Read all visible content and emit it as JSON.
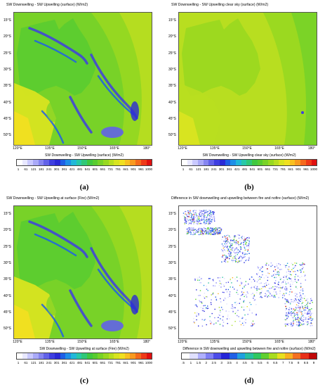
{
  "colors": {
    "scale": [
      "#ffffff",
      "#e8e8ff",
      "#c9c9ff",
      "#a9a9f7",
      "#8585f0",
      "#6262e8",
      "#3e3ee0",
      "#2a2ad6",
      "#1e5fe6",
      "#1e8fe8",
      "#22b8d8",
      "#28c8a8",
      "#30c878",
      "#40c840",
      "#58cc30",
      "#78d228",
      "#98d820",
      "#b8de20",
      "#d8e420",
      "#f0e020",
      "#f8c020",
      "#f89a20",
      "#f46a1c",
      "#ee3a18",
      "#e01010"
    ],
    "diff_scale": [
      "#ffffff",
      "#e0e0ff",
      "#b0b0ff",
      "#7f7ff5",
      "#4c4ce8",
      "#2626d8",
      "#2060e6",
      "#20a0e0",
      "#28c0a0",
      "#30c860",
      "#60d030",
      "#a8dc20",
      "#e8e020",
      "#f8b020",
      "#f47020",
      "#e83018",
      "#c00808"
    ]
  },
  "panels": [
    {
      "title": "SW Downwelling - SW Upwelling (surface)   (W/m2)",
      "colorbar_title": "SW Downwelling - SW Upwelling (surface)   (W/m2)",
      "label": "(a)",
      "variant": "full"
    },
    {
      "title": "SW Downwelling - SW Upwelling clear sky (surface)   (W/m2)",
      "colorbar_title": "SW Downwelling - SW Upwelling clear sky (surface)   (W/m2)",
      "label": "(b)",
      "variant": "clear"
    },
    {
      "title": "SW Downwelling - SW Upwelling at surface (Fire)   (W/m2)",
      "colorbar_title": "SW Downwelling - SW Upwelling at surface (Fire)   (W/m2)",
      "label": "(c)",
      "variant": "full"
    },
    {
      "title": "Difference in SW downwelling and upwelling between fire and nofire (surface)   (W/m2)",
      "colorbar_title": "Difference in SW downwelling and upwelling between fire and nofire (surface)   (W/m2)",
      "label": "(d)",
      "variant": "diff"
    }
  ],
  "lat_labels": [
    "15°S",
    "20°S",
    "25°S",
    "30°S",
    "35°S",
    "40°S",
    "45°S",
    "50°S"
  ],
  "lon_labels": [
    "120°E",
    "135°E",
    "150°E",
    "165°E",
    "180°"
  ],
  "flux_ticks": [
    "1",
    "61",
    "121",
    "181",
    "241",
    "301",
    "361",
    "421",
    "481",
    "541",
    "601",
    "661",
    "721",
    "781",
    "841",
    "901",
    "961",
    "1000"
  ],
  "diff_ticks": [
    ".5",
    "1",
    "1.5",
    "2",
    "2.5",
    "3",
    "3.5",
    "4",
    "4.5",
    "5",
    "5.5",
    "6",
    "6.5",
    "7",
    "7.5",
    "8",
    "8.5",
    "9"
  ]
}
